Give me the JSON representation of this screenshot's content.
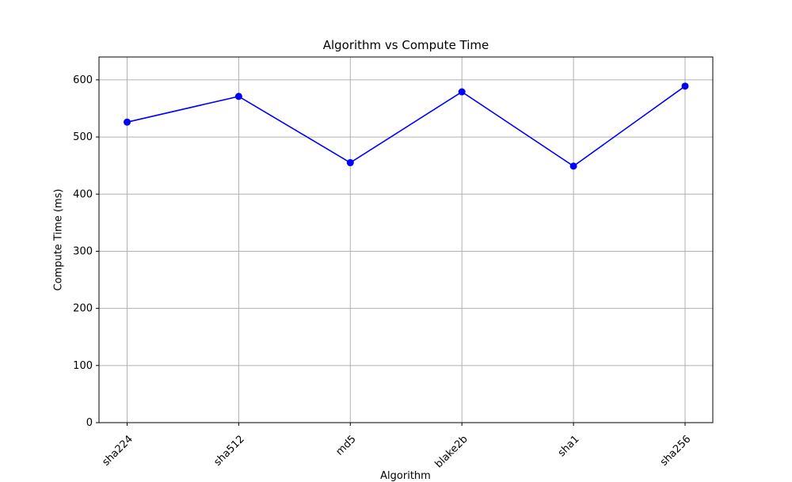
{
  "chart_data": {
    "type": "line",
    "title": "Algorithm vs Compute Time",
    "xlabel": "Algorithm",
    "ylabel": "Compute Time (ms)",
    "categories": [
      "sha224",
      "sha512",
      "md5",
      "blake2b",
      "sha1",
      "sha256"
    ],
    "values": [
      526,
      571,
      455,
      579,
      449,
      589
    ],
    "ylim": [
      0,
      640
    ],
    "yticks": [
      0,
      100,
      200,
      300,
      400,
      500,
      600
    ],
    "grid": true,
    "marker": "circle",
    "line_color": "#0000ff",
    "grid_color": "#b0b0b0"
  }
}
